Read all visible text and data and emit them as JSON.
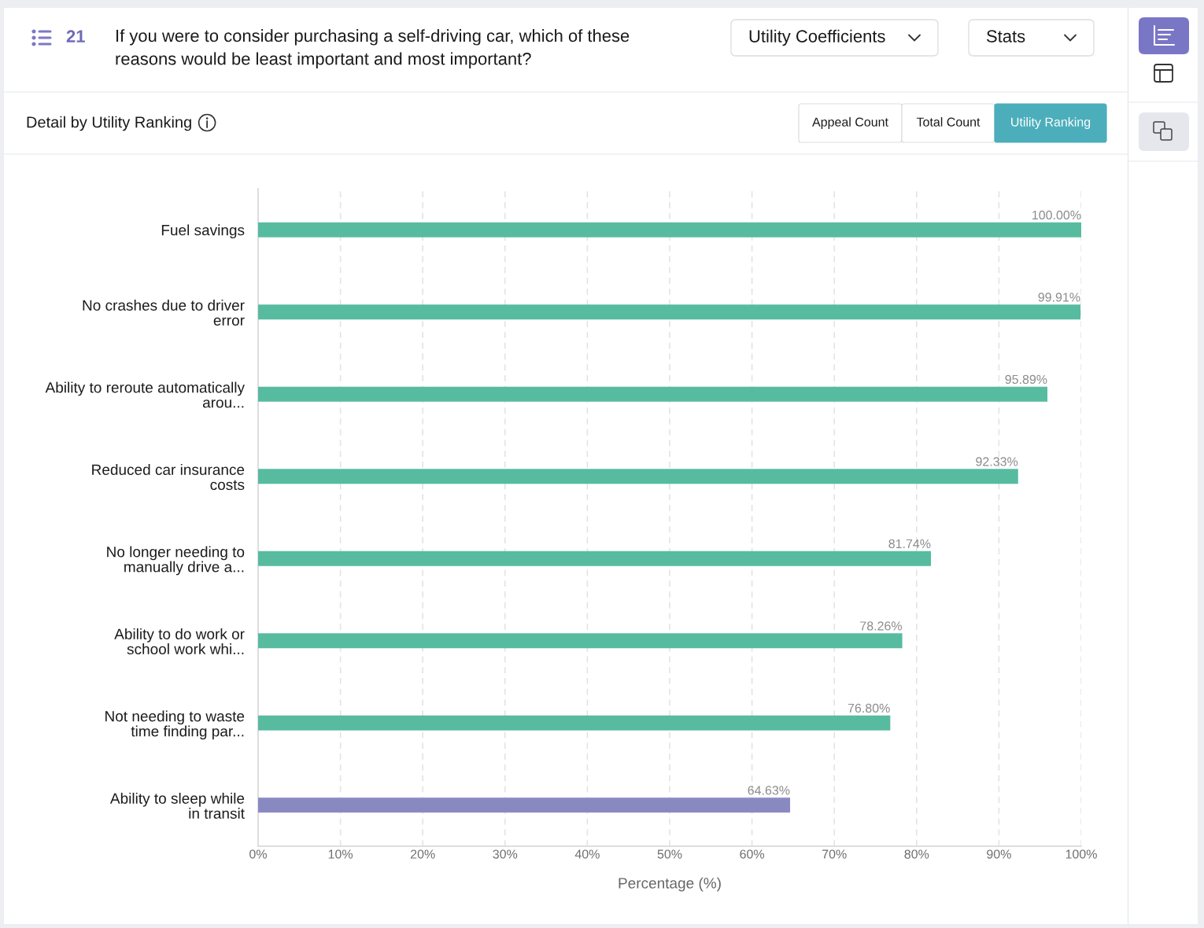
{
  "chart_data": {
    "type": "bar",
    "orientation": "horizontal",
    "title": "If you were to consider purchasing a self-driving car, which of these reasons would be least important and most important?",
    "subtitle": "Detail by Utility Ranking",
    "xlabel": "Percentage (%)",
    "annotations": [
      "21",
      "Utility Coefficients",
      "Stats",
      "Appeal Count",
      "Total Count",
      "Utility Ranking"
    ],
    "categories": [
      "Fuel savings",
      "No crashes due to driver\nerror",
      "Ability to reroute automatically\narou...",
      "Reduced car insurance\ncosts",
      "No longer needing to\nmanually drive a...",
      "Ability to do work or\nschool work whi...",
      "Not needing to waste\ntime finding par...",
      "Ability to sleep while\nin transit"
    ],
    "values": [
      100,
      99.91,
      95.89,
      92.33,
      81.74,
      78.26,
      76.8,
      64.63
    ],
    "value_labels": [
      "100.00%",
      "99.91%",
      "95.89%",
      "92.33%",
      "81.74%",
      "78.26%",
      "76.80%",
      "64.63%"
    ],
    "colors": [
      "#57bba0",
      "#57bba0",
      "#57bba0",
      "#57bba0",
      "#57bba0",
      "#57bba0",
      "#57bba0",
      "#8989c2"
    ],
    "xlim": [
      0,
      100
    ],
    "xticks": [
      {
        "value": 0,
        "label": "0%"
      },
      {
        "value": 10,
        "label": "10%"
      },
      {
        "value": 20,
        "label": "20%"
      },
      {
        "value": 30,
        "label": "30%"
      },
      {
        "value": 40,
        "label": "40%"
      },
      {
        "value": 50,
        "label": "50%"
      },
      {
        "value": 60,
        "label": "60%"
      },
      {
        "value": 70,
        "label": "70%"
      },
      {
        "value": 80,
        "label": "80%"
      },
      {
        "value": 90,
        "label": "90%"
      },
      {
        "value": 100,
        "label": "100%"
      }
    ],
    "grid": "x"
  }
}
